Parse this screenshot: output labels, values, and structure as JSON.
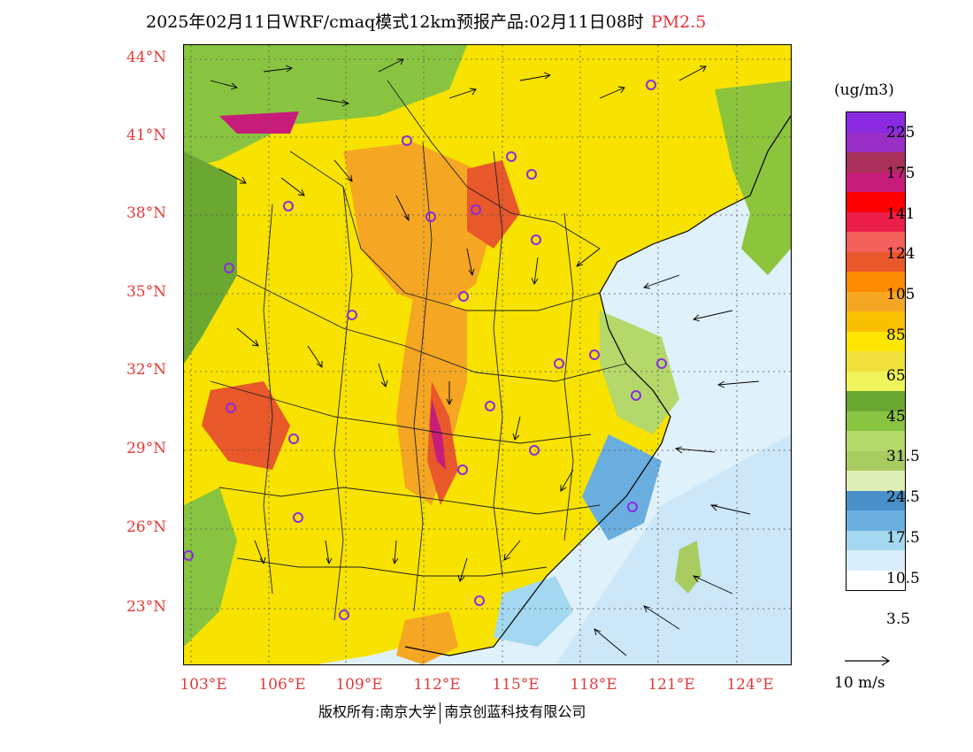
{
  "title": {
    "main": "2025年02月11日WRF/cmaq模式12km预报产品:02月11日08时",
    "pollutant": "PM2.5"
  },
  "map": {
    "lat_labels": [
      "44°N",
      "41°N",
      "38°N",
      "35°N",
      "32°N",
      "29°N",
      "26°N",
      "23°N"
    ],
    "lon_labels": [
      "103°E",
      "106°E",
      "109°E",
      "112°E",
      "115°E",
      "118°E",
      "121°E",
      "124°E"
    ],
    "colors": {
      "ocean": "#dff1fb",
      "land_base": "#f7e200",
      "accent": "#e8323c"
    }
  },
  "legend": {
    "units": "(ug/m3)",
    "swatches": [
      "#8a2be2",
      "#9a2fc8",
      "#a8305a",
      "#c81c7a",
      "#ff0000",
      "#ec1e4a",
      "#f4605c",
      "#e8582a",
      "#ff8c00",
      "#f5a623",
      "#f9c000",
      "#ffe600",
      "#f0e03c",
      "#eef45a",
      "#6aa832",
      "#88c440",
      "#b4d86a",
      "#a8cc60",
      "#dfeeb4",
      "#4a90c8",
      "#6aaee0",
      "#a4d8f0",
      "#d8eefa",
      "#ffffff"
    ],
    "labels": [
      "225",
      "175",
      "141",
      "124",
      "105",
      "85",
      "65",
      "45",
      "31.5",
      "24.5",
      "17.5",
      "10.5",
      "3.5"
    ]
  },
  "wind_reference": {
    "label": "10 m/s"
  },
  "footer": {
    "left": "版权所有:南京大学",
    "right": "南京创蓝科技有限公司"
  }
}
